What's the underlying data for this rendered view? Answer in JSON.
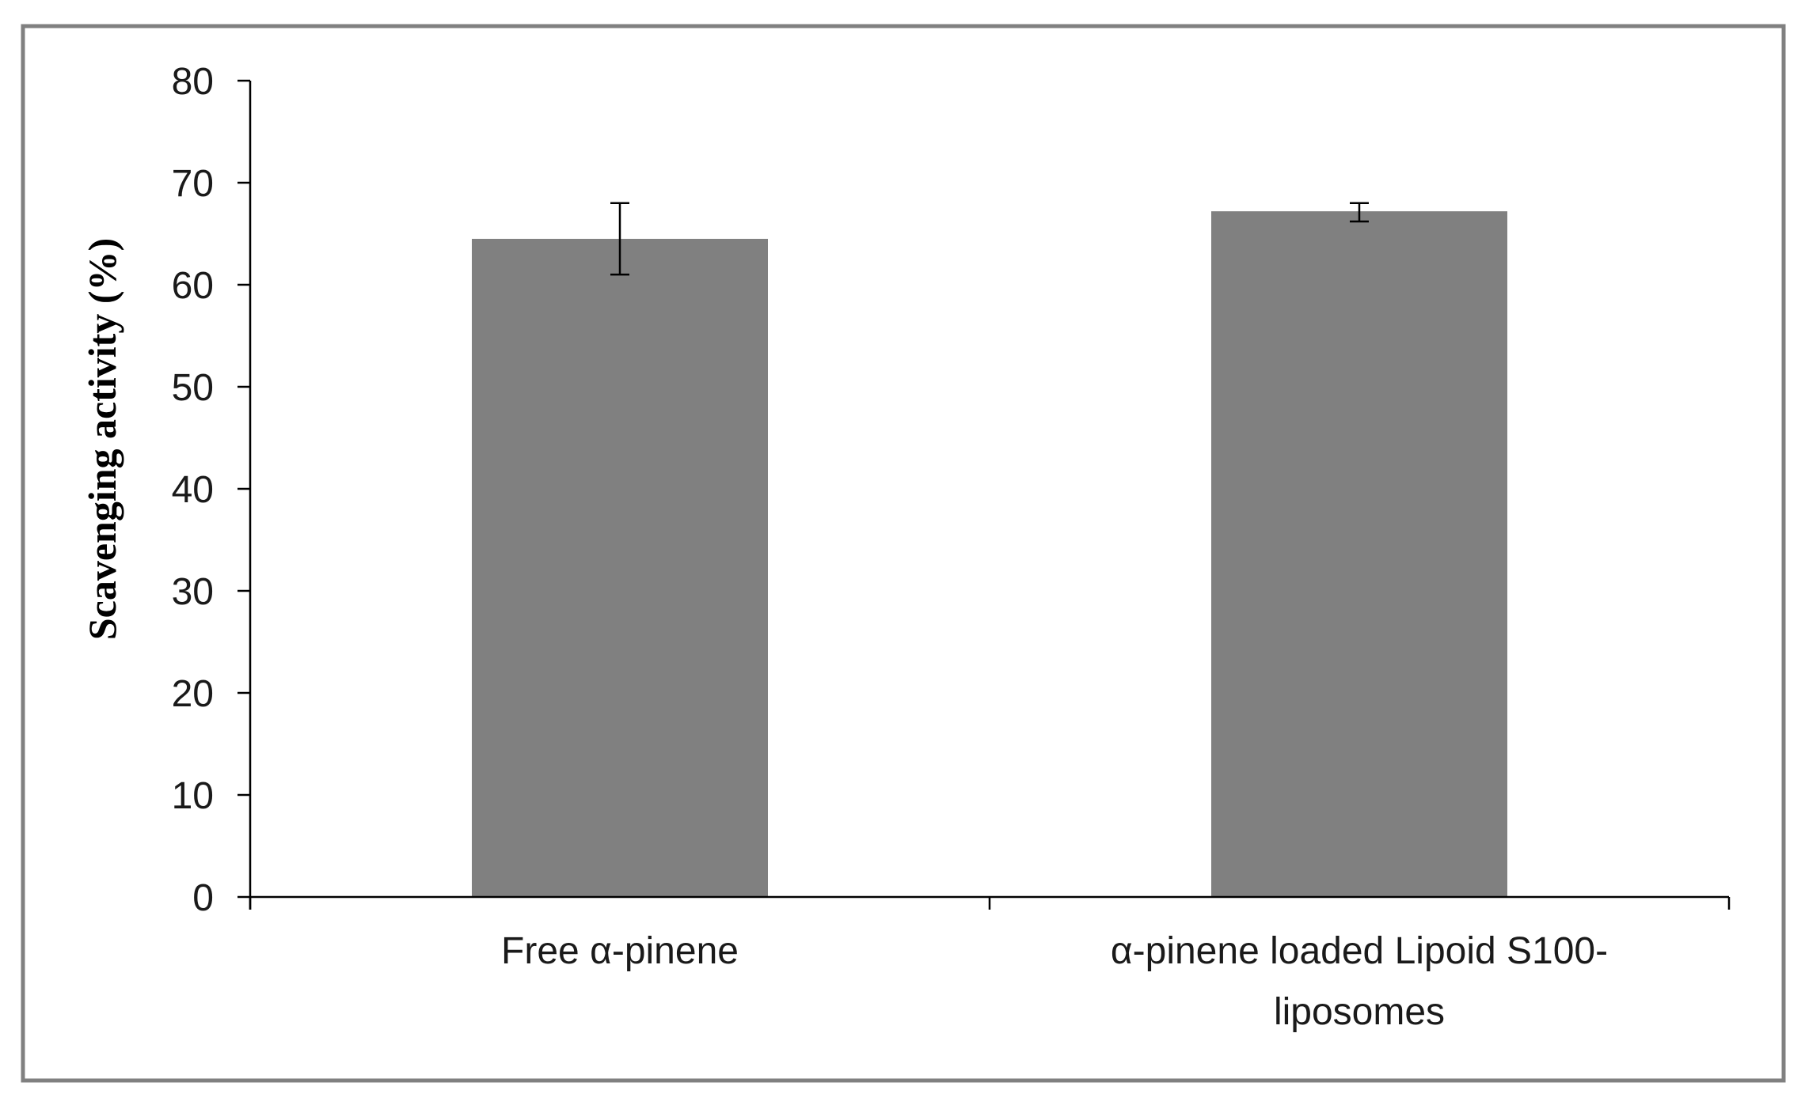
{
  "chart_data": {
    "type": "bar",
    "categories": [
      [
        "Free α-pinene"
      ],
      [
        "α-pinene loaded Lipoid S100-",
        "liposomes"
      ]
    ],
    "values": [
      64.5,
      67.2
    ],
    "error_bars": [
      {
        "low": 61.0,
        "high": 68.0
      },
      {
        "low": 66.2,
        "high": 68.0
      }
    ],
    "title": "",
    "xlabel": "",
    "ylabel": "Scavenging activity (%)",
    "ylim": [
      0,
      80
    ],
    "yticks": [
      0,
      10,
      20,
      30,
      40,
      50,
      60,
      70,
      80
    ],
    "grid": false,
    "legend": "none",
    "bar_color": "#808080",
    "axis_color": "#000000",
    "frame_color": "#808080"
  }
}
